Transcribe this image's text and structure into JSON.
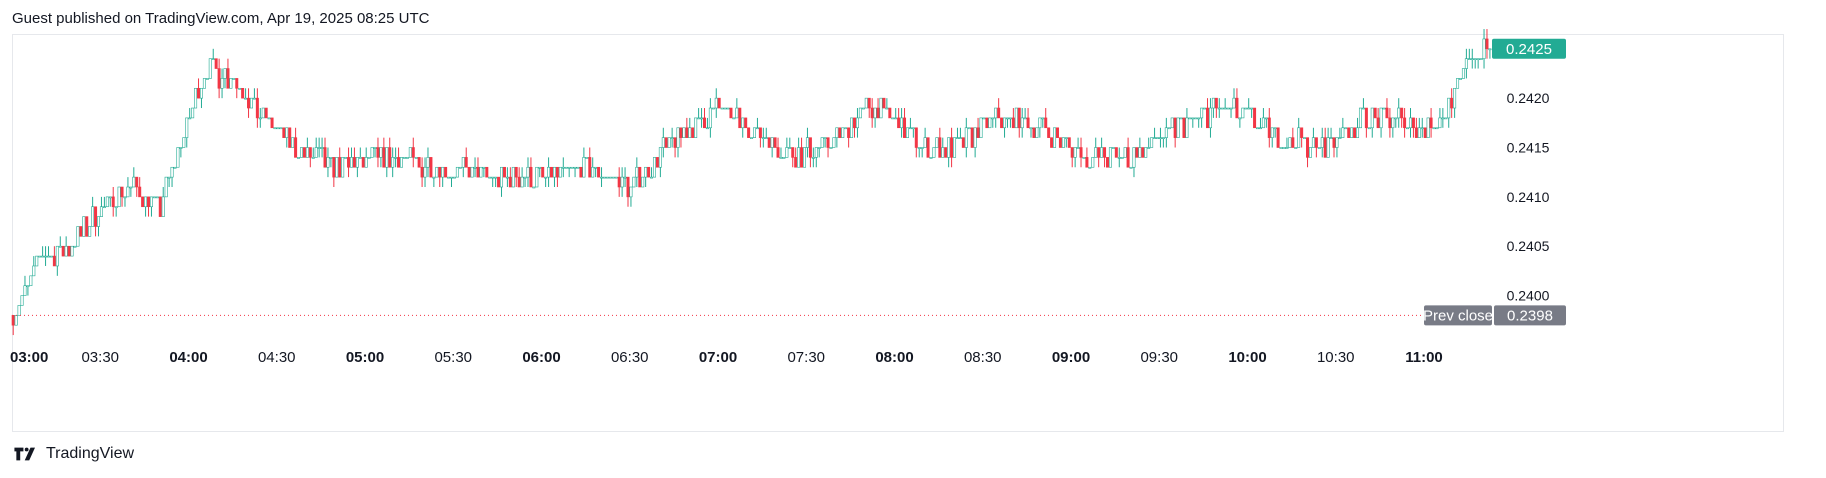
{
  "header": {
    "published": "Guest published on TradingView.com, Apr 19, 2025 08:25 UTC"
  },
  "footer": {
    "brand": "TradingView",
    "logo_icon": "tradingview-logo-icon"
  },
  "colors": {
    "up": "#22ab94",
    "down": "#f23645",
    "last_price_bg": "#22ab94",
    "prev_close_bg": "#787b86",
    "grid_dot": "#f23645"
  },
  "chart_data": {
    "type": "candlestick",
    "title": "",
    "xlabel": "",
    "ylabel": "",
    "ylim": [
      0.23955,
      0.24265
    ],
    "y_ticks": [
      "0.2400",
      "0.2405",
      "0.2410",
      "0.2415",
      "0.2420"
    ],
    "x_ticks": [
      {
        "label": "03:00",
        "bold": true
      },
      {
        "label": "03:30",
        "bold": false
      },
      {
        "label": "04:00",
        "bold": true
      },
      {
        "label": "04:30",
        "bold": false
      },
      {
        "label": "05:00",
        "bold": true
      },
      {
        "label": "05:30",
        "bold": false
      },
      {
        "label": "06:00",
        "bold": true
      },
      {
        "label": "06:30",
        "bold": false
      },
      {
        "label": "07:00",
        "bold": true
      },
      {
        "label": "07:30",
        "bold": false
      },
      {
        "label": "08:00",
        "bold": true
      },
      {
        "label": "08:30",
        "bold": false
      },
      {
        "label": "09:00",
        "bold": true
      },
      {
        "label": "09:30",
        "bold": false
      },
      {
        "label": "10:00",
        "bold": true
      },
      {
        "label": "10:30",
        "bold": false
      },
      {
        "label": "11:00",
        "bold": true
      }
    ],
    "last_price": {
      "label": "0.2425",
      "value": 0.2425
    },
    "prev_close": {
      "label": "Prev close",
      "value_label": "0.2398",
      "value": 0.2398
    },
    "price_path": [
      [
        "03:00",
        0.2398
      ],
      [
        "03:10",
        0.2404
      ],
      [
        "03:20",
        0.2405
      ],
      [
        "03:30",
        0.2409
      ],
      [
        "03:40",
        0.2411
      ],
      [
        "03:50",
        0.2409
      ],
      [
        "04:00",
        0.2418
      ],
      [
        "04:05",
        0.2423
      ],
      [
        "04:15",
        0.2422
      ],
      [
        "04:25",
        0.2418
      ],
      [
        "04:35",
        0.2415
      ],
      [
        "04:50",
        0.2413
      ],
      [
        "05:05",
        0.2414
      ],
      [
        "05:25",
        0.2413
      ],
      [
        "05:45",
        0.2412
      ],
      [
        "06:00",
        0.2412
      ],
      [
        "06:15",
        0.2413
      ],
      [
        "06:30",
        0.2411
      ],
      [
        "06:45",
        0.2416
      ],
      [
        "07:00",
        0.2419
      ],
      [
        "07:10",
        0.2417
      ],
      [
        "07:25",
        0.2414
      ],
      [
        "07:40",
        0.2416
      ],
      [
        "07:50",
        0.2419
      ],
      [
        "08:00",
        0.2418
      ],
      [
        "08:10",
        0.2415
      ],
      [
        "08:20",
        0.2415
      ],
      [
        "08:35",
        0.2418
      ],
      [
        "08:50",
        0.2417
      ],
      [
        "09:05",
        0.2414
      ],
      [
        "09:20",
        0.2414
      ],
      [
        "09:35",
        0.2417
      ],
      [
        "09:50",
        0.2419
      ],
      [
        "10:00",
        0.2418
      ],
      [
        "10:10",
        0.2416
      ],
      [
        "10:25",
        0.2415
      ],
      [
        "10:40",
        0.2418
      ],
      [
        "10:50",
        0.2418
      ],
      [
        "11:00",
        0.2417
      ],
      [
        "11:05",
        0.2418
      ],
      [
        "11:10",
        0.242
      ],
      [
        "11:15",
        0.2424
      ],
      [
        "11:22",
        0.2425
      ]
    ]
  }
}
